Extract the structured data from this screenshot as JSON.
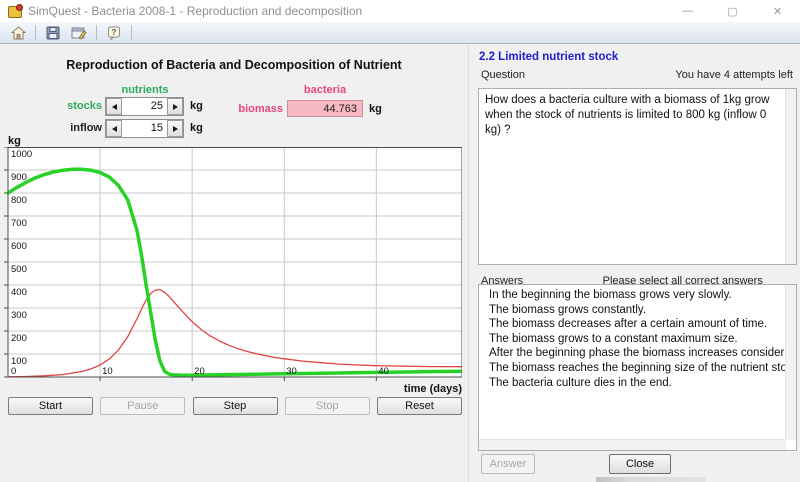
{
  "window": {
    "title": "SimQuest - Bacteria 2008-1 - Reproduction and decomposition",
    "controls": {
      "minimize": "—",
      "maximize": "▢",
      "close": "✕"
    }
  },
  "toolbar": {
    "icons": [
      "home",
      "save",
      "edit",
      "help"
    ]
  },
  "simulation": {
    "title": "Reproduction of Bacteria and Decomposition of Nutrient",
    "nutrients_label": "nutrients",
    "stocks_label": "stocks",
    "stocks_value": "25",
    "inflow_label": "inflow",
    "inflow_value": "15",
    "bacteria_label": "bacteria",
    "biomass_label": "biomass",
    "biomass_value": "44.763",
    "unit": "kg",
    "buttons": [
      {
        "label": "Start",
        "enabled": true
      },
      {
        "label": "Pause",
        "enabled": false
      },
      {
        "label": "Step",
        "enabled": true
      },
      {
        "label": "Stop",
        "enabled": false
      },
      {
        "label": "Reset",
        "enabled": true
      }
    ]
  },
  "chart_data": {
    "type": "line",
    "title": "",
    "xlabel": "time (days)",
    "ylabel": "kg",
    "xlim": [
      0,
      49.3
    ],
    "ylim": [
      0,
      1000
    ],
    "xticks": [
      10,
      20,
      30,
      40
    ],
    "yticks": [
      0,
      100,
      200,
      300,
      400,
      500,
      600,
      700,
      800,
      900,
      1000
    ],
    "grid": true,
    "legend": "none",
    "series": [
      {
        "name": "bacteria biomass",
        "color": "#e04545",
        "width": 1.3,
        "points": [
          [
            0,
            1
          ],
          [
            2,
            2
          ],
          [
            4,
            5
          ],
          [
            6,
            11
          ],
          [
            8,
            24
          ],
          [
            9,
            35
          ],
          [
            10,
            52
          ],
          [
            11,
            78
          ],
          [
            12,
            118
          ],
          [
            13,
            175
          ],
          [
            14,
            252
          ],
          [
            14.5,
            295
          ],
          [
            15,
            335
          ],
          [
            15.5,
            363
          ],
          [
            16,
            378
          ],
          [
            16.5,
            380
          ],
          [
            17,
            368
          ],
          [
            17.5,
            350
          ],
          [
            18,
            327
          ],
          [
            19,
            282
          ],
          [
            20,
            240
          ],
          [
            21,
            206
          ],
          [
            22,
            178
          ],
          [
            23,
            156
          ],
          [
            24,
            138
          ],
          [
            25,
            123
          ],
          [
            26,
            111
          ],
          [
            27,
            101
          ],
          [
            28,
            92
          ],
          [
            29,
            85
          ],
          [
            30,
            79
          ],
          [
            32,
            69
          ],
          [
            34,
            62
          ],
          [
            36,
            56
          ],
          [
            38,
            52
          ],
          [
            40,
            49
          ],
          [
            43,
            47
          ],
          [
            46,
            45
          ],
          [
            49.3,
            44.763
          ]
        ]
      },
      {
        "name": "nutrients stock",
        "color": "#27d227",
        "width": 3.5,
        "points": [
          [
            0,
            800
          ],
          [
            1,
            825
          ],
          [
            2,
            847
          ],
          [
            3,
            866
          ],
          [
            4,
            881
          ],
          [
            5,
            892
          ],
          [
            6,
            899
          ],
          [
            7,
            903
          ],
          [
            8,
            903
          ],
          [
            9,
            899
          ],
          [
            10,
            889
          ],
          [
            11,
            869
          ],
          [
            12,
            833
          ],
          [
            13,
            770
          ],
          [
            14,
            640
          ],
          [
            14.5,
            530
          ],
          [
            15,
            400
          ],
          [
            15.5,
            280
          ],
          [
            16,
            160
          ],
          [
            16.5,
            70
          ],
          [
            17,
            25
          ],
          [
            17.5,
            12
          ],
          [
            18,
            9
          ],
          [
            19,
            8
          ],
          [
            20,
            8
          ],
          [
            22,
            9
          ],
          [
            25,
            11
          ],
          [
            30,
            14
          ],
          [
            35,
            17
          ],
          [
            40,
            20
          ],
          [
            45,
            23
          ],
          [
            49.3,
            25
          ]
        ]
      }
    ]
  },
  "assignment": {
    "title": "2.2 Limited nutrient stock",
    "question_label": "Question",
    "attempts_text": "You have 4 attempts left",
    "question_text": "How does a bacteria culture with a biomass of 1kg grow when the stock of nutrients is limited to 800 kg (inflow 0 kg) ?",
    "answers_label": "Answers",
    "answers_hint": "Please select all correct answers",
    "answers": [
      "In the beginning the biomass grows very slowly.",
      "The biomass grows constantly.",
      "The biomass decreases after a certain amount of time.",
      "The biomass grows to a constant maximum size.",
      "After the beginning phase the biomass increases considerably",
      "The biomass reaches the beginning size of the nutrient stock.",
      "The bacteria culture dies in the end."
    ],
    "answer_button": "Answer",
    "close_button": "Close"
  }
}
